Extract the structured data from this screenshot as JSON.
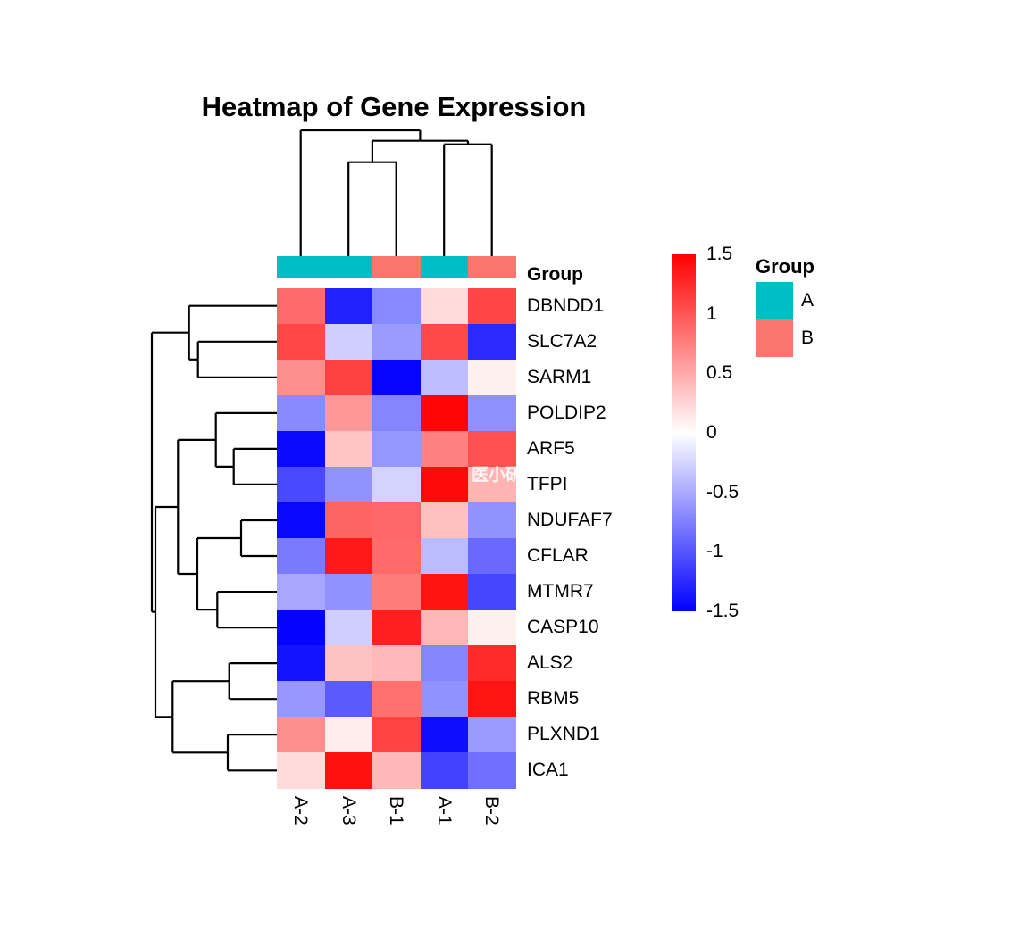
{
  "title": "Heatmap of Gene Expression",
  "watermark": "医小研",
  "annotation": {
    "label": "Group",
    "groups": [
      "A",
      "A",
      "B",
      "A",
      "B"
    ],
    "colors": {
      "A": "#00BFC4",
      "B": "#F8766D"
    }
  },
  "legend": {
    "title": "Group",
    "entries": [
      {
        "label": "A",
        "color": "#00BFC4"
      },
      {
        "label": "B",
        "color": "#F8766D"
      }
    ]
  },
  "colorbar": {
    "tick_labels": [
      "1.5",
      "1",
      "0.5",
      "0",
      "-0.5",
      "-1",
      "-1.5"
    ],
    "tick_values": [
      1.5,
      1,
      0.5,
      0,
      -0.5,
      -1,
      -1.5
    ],
    "min": -1.5,
    "max": 1.5,
    "low_color": "#0000FF",
    "mid_color": "#FFFFFF",
    "high_color": "#FF0000"
  },
  "chart_data": {
    "type": "heatmap",
    "title": "Heatmap of Gene Expression",
    "columns": [
      "A-2",
      "A-3",
      "B-1",
      "A-1",
      "B-2"
    ],
    "column_groups": [
      "A",
      "A",
      "B",
      "A",
      "B"
    ],
    "rows": [
      "DBNDD1",
      "SLC7A2",
      "SARM1",
      "POLDIP2",
      "ARF5",
      "TFPI",
      "NDUFAF7",
      "CFLAR",
      "MTMR7",
      "CASP10",
      "ALS2",
      "RBM5",
      "PLXND1",
      "ICA1"
    ],
    "zlim": [
      -1.5,
      1.5
    ],
    "colormap": "blue-white-red",
    "values": [
      [
        0.87,
        -1.3,
        -0.7,
        0.21,
        1.09
      ],
      [
        1.08,
        -0.29,
        -0.59,
        1.07,
        -1.25
      ],
      [
        0.66,
        1.12,
        -1.47,
        -0.39,
        0.09
      ],
      [
        -0.69,
        0.61,
        -0.72,
        1.47,
        -0.66
      ],
      [
        -1.44,
        0.35,
        -0.62,
        0.75,
        1.03
      ],
      [
        -1.07,
        -0.64,
        -0.26,
        1.44,
        0.44
      ],
      [
        -1.45,
        0.91,
        0.89,
        0.37,
        -0.64
      ],
      [
        -0.78,
        1.35,
        0.87,
        -0.4,
        -0.88
      ],
      [
        -0.52,
        -0.65,
        0.77,
        1.39,
        -1.09
      ],
      [
        -1.48,
        -0.28,
        1.32,
        0.43,
        0.09
      ],
      [
        -1.39,
        0.36,
        0.41,
        -0.72,
        1.25
      ],
      [
        -0.61,
        -0.97,
        0.84,
        -0.65,
        1.38
      ],
      [
        0.66,
        0.11,
        1.11,
        -1.42,
        -0.59
      ],
      [
        0.21,
        1.4,
        0.42,
        -1.11,
        -0.84
      ]
    ]
  },
  "dendrograms": {
    "row_segments": [
      [
        211.7,
        342.7,
        310,
        342.7
      ],
      [
        221.7,
        382.8,
        310,
        382.8
      ],
      [
        221.7,
        422.8,
        310,
        422.8
      ],
      [
        241.7,
        462.9,
        310,
        462.9
      ],
      [
        261.7,
        502.9,
        310,
        502.9
      ],
      [
        261.7,
        542.9,
        310,
        542.9
      ],
      [
        270,
        583.0,
        310,
        583.0
      ],
      [
        270,
        623.0,
        310,
        623.0
      ],
      [
        243.3,
        663.1,
        310,
        663.1
      ],
      [
        243.3,
        703.1,
        310,
        703.1
      ],
      [
        256.7,
        743.1,
        310,
        743.1
      ],
      [
        256.7,
        783.2,
        310,
        783.2
      ],
      [
        255,
        823.2,
        310,
        823.2
      ],
      [
        255,
        863.3,
        310,
        863.3
      ],
      [
        221.7,
        382.8,
        221.7,
        422.8
      ],
      [
        211.7,
        402.8,
        221.7,
        402.8
      ],
      [
        211.7,
        342.7,
        211.7,
        402.8
      ],
      [
        170,
        372.7,
        211.7,
        372.7
      ],
      [
        261.7,
        502.9,
        261.7,
        542.9
      ],
      [
        241.7,
        522.9,
        261.7,
        522.9
      ],
      [
        241.7,
        462.9,
        241.7,
        522.9
      ],
      [
        199.3,
        492.9,
        241.7,
        492.9
      ],
      [
        270,
        583.0,
        270,
        623.0
      ],
      [
        221,
        603.0,
        270,
        603.0
      ],
      [
        243.3,
        663.1,
        243.3,
        703.1
      ],
      [
        221,
        683.1,
        243.3,
        683.1
      ],
      [
        221,
        603.0,
        221,
        683.1
      ],
      [
        199.3,
        643.0,
        221,
        643.0
      ],
      [
        199.3,
        492.9,
        199.3,
        643.0
      ],
      [
        174,
        568.0,
        199.3,
        568.0
      ],
      [
        256.7,
        743.1,
        256.7,
        783.2
      ],
      [
        193.3,
        763.2,
        256.7,
        763.2
      ],
      [
        255,
        823.2,
        255,
        863.3
      ],
      [
        193.3,
        843.3,
        255,
        843.3
      ],
      [
        193.3,
        763.2,
        193.3,
        843.3
      ],
      [
        174,
        803.3,
        193.3,
        803.3
      ],
      [
        174,
        568.0,
        174,
        803.3
      ],
      [
        170,
        685.6,
        174,
        685.6
      ],
      [
        170,
        372.7,
        170,
        685.6
      ]
    ],
    "col_segments": [
      [
        336.7,
        146,
        336.7,
        287.3
      ],
      [
        390.2,
        181.7,
        390.2,
        287.3
      ],
      [
        443.7,
        181.7,
        443.7,
        287.3
      ],
      [
        497.2,
        161.7,
        497.2,
        287.3
      ],
      [
        550.7,
        161.7,
        550.7,
        287.3
      ],
      [
        390.2,
        181.7,
        443.7,
        181.7
      ],
      [
        416.9,
        157.7,
        416.9,
        181.7
      ],
      [
        497.2,
        161.7,
        550.7,
        161.7
      ],
      [
        524.0,
        157.7,
        524.0,
        161.7
      ],
      [
        416.9,
        157.7,
        524.0,
        157.7
      ],
      [
        470.4,
        146,
        470.4,
        157.7
      ],
      [
        336.7,
        146,
        470.4,
        146
      ]
    ]
  }
}
